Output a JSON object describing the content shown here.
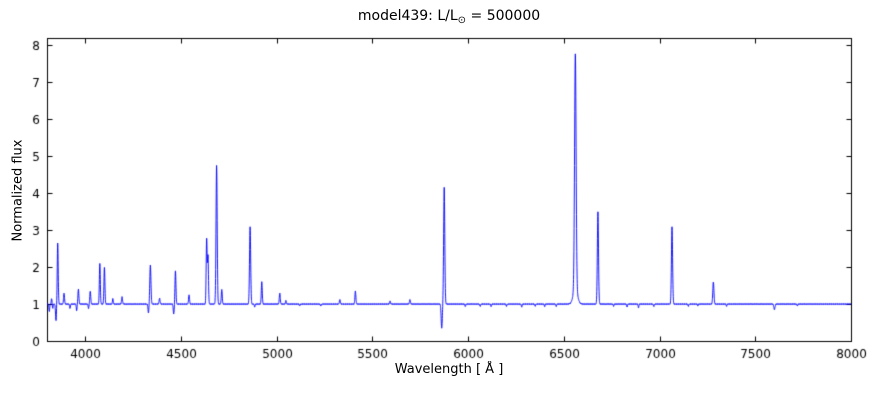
{
  "figure": {
    "title_prefix": "model439: L/L",
    "title_sub": "⊙",
    "title_suffix": " = 500000"
  },
  "chart_data": {
    "type": "line",
    "title": "model439: L/L⊙ = 500000",
    "xlabel": "Wavelength [ Å ]",
    "ylabel": "Normalized flux",
    "xlim": [
      3800,
      8000
    ],
    "ylim": [
      0,
      8.2
    ],
    "x_ticks": [
      4000,
      4500,
      5000,
      5500,
      6000,
      6500,
      7000,
      7500,
      8000
    ],
    "y_ticks": [
      0,
      1,
      2,
      3,
      4,
      5,
      6,
      7,
      8
    ],
    "grid": false,
    "legend": null,
    "line_color": "#0000ff",
    "axis_color": "#000000",
    "continuum": 1.0,
    "features": [
      {
        "wavelength": 3812,
        "flux": 0.8,
        "width": 2
      },
      {
        "wavelength": 3824,
        "flux": 1.15,
        "width": 2
      },
      {
        "wavelength": 3830,
        "flux": 0.88,
        "width": 2
      },
      {
        "wavelength": 3847,
        "flux": 0.55,
        "width": 2.5
      },
      {
        "wavelength": 3856,
        "flux": 2.65,
        "width": 2.5
      },
      {
        "wavelength": 3889,
        "flux": 1.3,
        "width": 2.5
      },
      {
        "wavelength": 3920,
        "flux": 0.88,
        "width": 2
      },
      {
        "wavelength": 3955,
        "flux": 0.82,
        "width": 2
      },
      {
        "wavelength": 3964,
        "flux": 1.4,
        "width": 2.5
      },
      {
        "wavelength": 4017,
        "flux": 0.88,
        "width": 2
      },
      {
        "wavelength": 4026,
        "flux": 1.35,
        "width": 2.5
      },
      {
        "wavelength": 4076,
        "flux": 2.1,
        "width": 2.5
      },
      {
        "wavelength": 4100,
        "flux": 2.0,
        "width": 2.5
      },
      {
        "wavelength": 4144,
        "flux": 1.15,
        "width": 2
      },
      {
        "wavelength": 4192,
        "flux": 1.2,
        "width": 2.5
      },
      {
        "wavelength": 4330,
        "flux": 0.76,
        "width": 2.5
      },
      {
        "wavelength": 4340,
        "flux": 2.05,
        "width": 3
      },
      {
        "wavelength": 4388,
        "flux": 1.15,
        "width": 2.5
      },
      {
        "wavelength": 4462,
        "flux": 0.73,
        "width": 2.5
      },
      {
        "wavelength": 4471,
        "flux": 1.9,
        "width": 2.5
      },
      {
        "wavelength": 4542,
        "flux": 1.25,
        "width": 2.5
      },
      {
        "wavelength": 4634,
        "flux": 2.75,
        "width": 2.5
      },
      {
        "wavelength": 4641,
        "flux": 2.3,
        "width": 2.5
      },
      {
        "wavelength": 4686,
        "flux": 4.75,
        "width": 3
      },
      {
        "wavelength": 4713,
        "flux": 1.4,
        "width": 2.5
      },
      {
        "wavelength": 4861,
        "flux": 3.1,
        "width": 3
      },
      {
        "wavelength": 4885,
        "flux": 0.92,
        "width": 2
      },
      {
        "wavelength": 4922,
        "flux": 1.6,
        "width": 2.5
      },
      {
        "wavelength": 5016,
        "flux": 1.3,
        "width": 2.5
      },
      {
        "wavelength": 5048,
        "flux": 1.1,
        "width": 2
      },
      {
        "wavelength": 5120,
        "flux": 0.95,
        "width": 2
      },
      {
        "wavelength": 5230,
        "flux": 0.95,
        "width": 2
      },
      {
        "wavelength": 5330,
        "flux": 1.12,
        "width": 2.5
      },
      {
        "wavelength": 5411,
        "flux": 1.35,
        "width": 2.5
      },
      {
        "wavelength": 5592,
        "flux": 1.08,
        "width": 2.5
      },
      {
        "wavelength": 5696,
        "flux": 1.12,
        "width": 2.5
      },
      {
        "wavelength": 5862,
        "flux": 0.35,
        "width": 3
      },
      {
        "wavelength": 5875,
        "flux": 4.15,
        "width": 3
      },
      {
        "wavelength": 5985,
        "flux": 0.93,
        "width": 2
      },
      {
        "wavelength": 6063,
        "flux": 0.94,
        "width": 2
      },
      {
        "wavelength": 6120,
        "flux": 0.93,
        "width": 2
      },
      {
        "wavelength": 6200,
        "flux": 0.94,
        "width": 2
      },
      {
        "wavelength": 6280,
        "flux": 0.92,
        "width": 2
      },
      {
        "wavelength": 6350,
        "flux": 0.94,
        "width": 2
      },
      {
        "wavelength": 6400,
        "flux": 0.93,
        "width": 2
      },
      {
        "wavelength": 6460,
        "flux": 0.94,
        "width": 2
      },
      {
        "wavelength": 6560,
        "flux": 7.35,
        "width": 4
      },
      {
        "wavelength": 6560,
        "flux": 1.42,
        "width": 11
      },
      {
        "wavelength": 6678,
        "flux": 3.5,
        "width": 3
      },
      {
        "wavelength": 6760,
        "flux": 0.94,
        "width": 2
      },
      {
        "wavelength": 6830,
        "flux": 0.92,
        "width": 2
      },
      {
        "wavelength": 6890,
        "flux": 0.9,
        "width": 2
      },
      {
        "wavelength": 6970,
        "flux": 0.94,
        "width": 2
      },
      {
        "wavelength": 7065,
        "flux": 3.1,
        "width": 3
      },
      {
        "wavelength": 7150,
        "flux": 0.94,
        "width": 2
      },
      {
        "wavelength": 7200,
        "flux": 0.95,
        "width": 2
      },
      {
        "wavelength": 7281,
        "flux": 1.6,
        "width": 3
      },
      {
        "wavelength": 7350,
        "flux": 0.94,
        "width": 2
      },
      {
        "wavelength": 7600,
        "flux": 0.85,
        "width": 3
      },
      {
        "wavelength": 7720,
        "flux": 0.95,
        "width": 2
      }
    ]
  }
}
